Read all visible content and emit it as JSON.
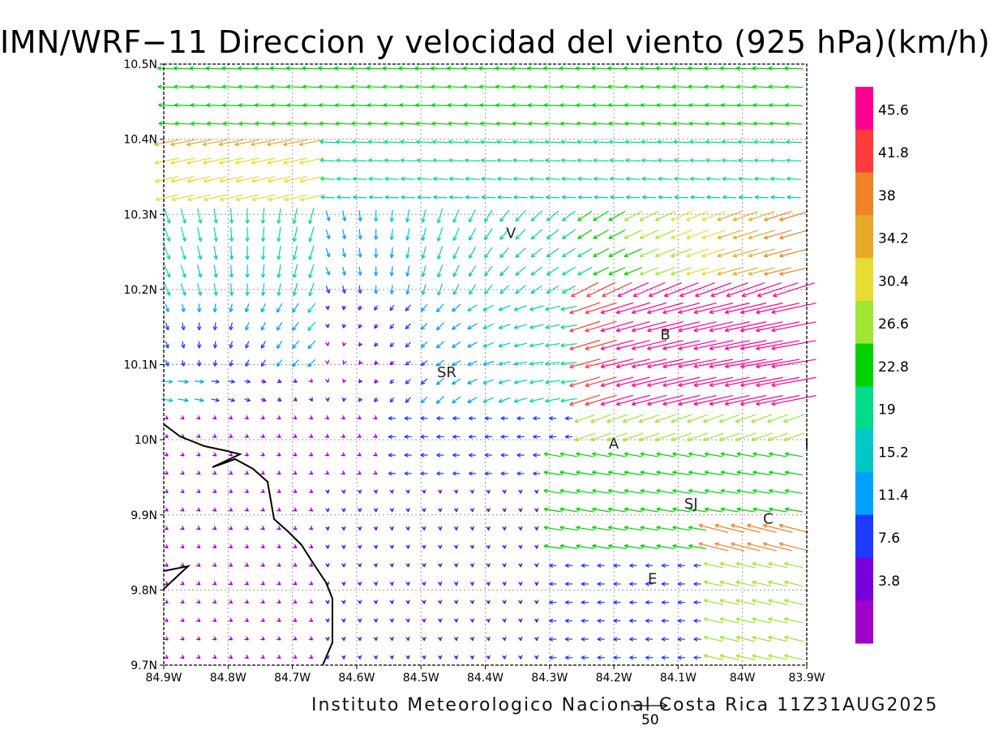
{
  "title": "IMN/WRF−11 Direccion y velocidad del viento (925 hPa)(km/h)",
  "footer": "Instituto Meteorologico Nacional Costa Rica  11Z31AUG2025",
  "reference_vector": {
    "label": "50"
  },
  "axes": {
    "x_ticks": [
      "84.9W",
      "84.8W",
      "84.7W",
      "84.6W",
      "84.5W",
      "84.4W",
      "84.3W",
      "84.2W",
      "84.1W",
      "84W",
      "83.9W"
    ],
    "y_ticks": [
      "10.5N",
      "10.4N",
      "10.3N",
      "10.2N",
      "10.1N",
      "10N",
      "9.9N",
      "9.8N",
      "9.7N"
    ],
    "lon_range": [
      -84.9,
      -83.9
    ],
    "lat_range": [
      9.7,
      10.5
    ],
    "grid": "dotted"
  },
  "colorbar": {
    "labels": [
      "45.6",
      "41.8",
      "38",
      "34.2",
      "30.4",
      "26.6",
      "22.8",
      "19",
      "15.2",
      "11.4",
      "7.6",
      "3.8"
    ],
    "colors": [
      "#ff0090",
      "#ff3b3b",
      "#f08228",
      "#e6aa28",
      "#e6dc32",
      "#a0e632",
      "#00d200",
      "#00dc8c",
      "#00c8c8",
      "#00a0ff",
      "#1e3cff",
      "#7800dc",
      "#a000c8"
    ]
  },
  "places": [
    {
      "name": "V",
      "lon": -84.36,
      "lat": 10.275
    },
    {
      "name": "B",
      "lon": -84.12,
      "lat": 10.14
    },
    {
      "name": "SR",
      "lon": -84.46,
      "lat": 10.09
    },
    {
      "name": "A",
      "lon": -84.2,
      "lat": 9.995
    },
    {
      "name": "SJ",
      "lon": -84.08,
      "lat": 9.915
    },
    {
      "name": "C",
      "lon": -83.96,
      "lat": 9.895
    },
    {
      "name": "E",
      "lon": -84.14,
      "lat": 9.815
    },
    {
      "name": "I",
      "lon": -83.9,
      "lat": 9.995
    }
  ],
  "wind_field": {
    "units": "km/h",
    "grid_lon_step": 0.025,
    "grid_lat_step": 0.0245
  }
}
